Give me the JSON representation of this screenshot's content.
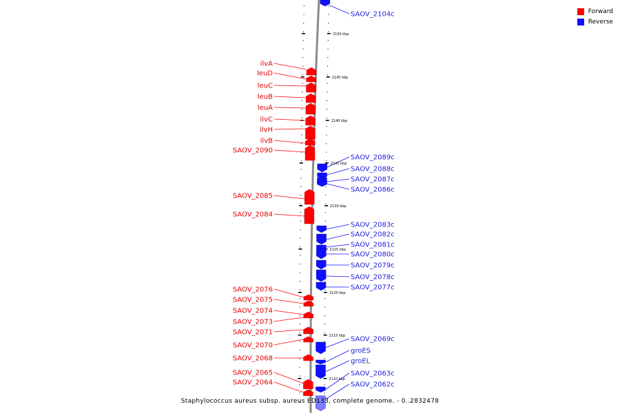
{
  "legend": {
    "forward_label": "Forward",
    "reverse_label": "Reverse",
    "forward_color": "#ff0000",
    "reverse_color": "#1010ff"
  },
  "caption": "Staphylococcus aureus subsp. aureus ED133, complete genome. - 0..2832478",
  "ticks": [
    {
      "label": "2150 kbp"
    },
    {
      "label": "2145 kbp"
    },
    {
      "label": "2140 kbp"
    },
    {
      "label": "2135 kbp"
    },
    {
      "label": "2130 kbp"
    },
    {
      "label": "2125 kbp"
    },
    {
      "label": "2120 kbp"
    },
    {
      "label": "2115 kbp"
    },
    {
      "label": "2110 kbp"
    }
  ],
  "forward_genes": [
    {
      "name": "ilvA"
    },
    {
      "name": "leuD"
    },
    {
      "name": "leuC"
    },
    {
      "name": "leuB"
    },
    {
      "name": "leuA"
    },
    {
      "name": "ilvC"
    },
    {
      "name": "ilvH"
    },
    {
      "name": "ilvB"
    },
    {
      "name": "SAOV_2090"
    },
    {
      "name": "SAOV_2085"
    },
    {
      "name": "SAOV_2084"
    },
    {
      "name": "SAOV_2076"
    },
    {
      "name": "SAOV_2075"
    },
    {
      "name": "SAOV_2074"
    },
    {
      "name": "SAOV_2073"
    },
    {
      "name": "SAOV_2071"
    },
    {
      "name": "SAOV_2070"
    },
    {
      "name": "SAOV_2068"
    },
    {
      "name": "SAOV_2065"
    },
    {
      "name": "SAOV_2064"
    }
  ],
  "reverse_genes": [
    {
      "name": "SAOV_2104c"
    },
    {
      "name": "SAOV_2089c"
    },
    {
      "name": "SAOV_2088c"
    },
    {
      "name": "SAOV_2087c"
    },
    {
      "name": "SAOV_2086c"
    },
    {
      "name": "SAOV_2083c"
    },
    {
      "name": "SAOV_2082c"
    },
    {
      "name": "SAOV_2081c"
    },
    {
      "name": "SAOV_2080c"
    },
    {
      "name": "SAOV_2079c"
    },
    {
      "name": "SAOV_2078c"
    },
    {
      "name": "SAOV_2077c"
    },
    {
      "name": "SAOV_2069c"
    },
    {
      "name": "groES"
    },
    {
      "name": "groEL"
    },
    {
      "name": "SAOV_2063c"
    },
    {
      "name": "SAOV_2062c"
    }
  ]
}
